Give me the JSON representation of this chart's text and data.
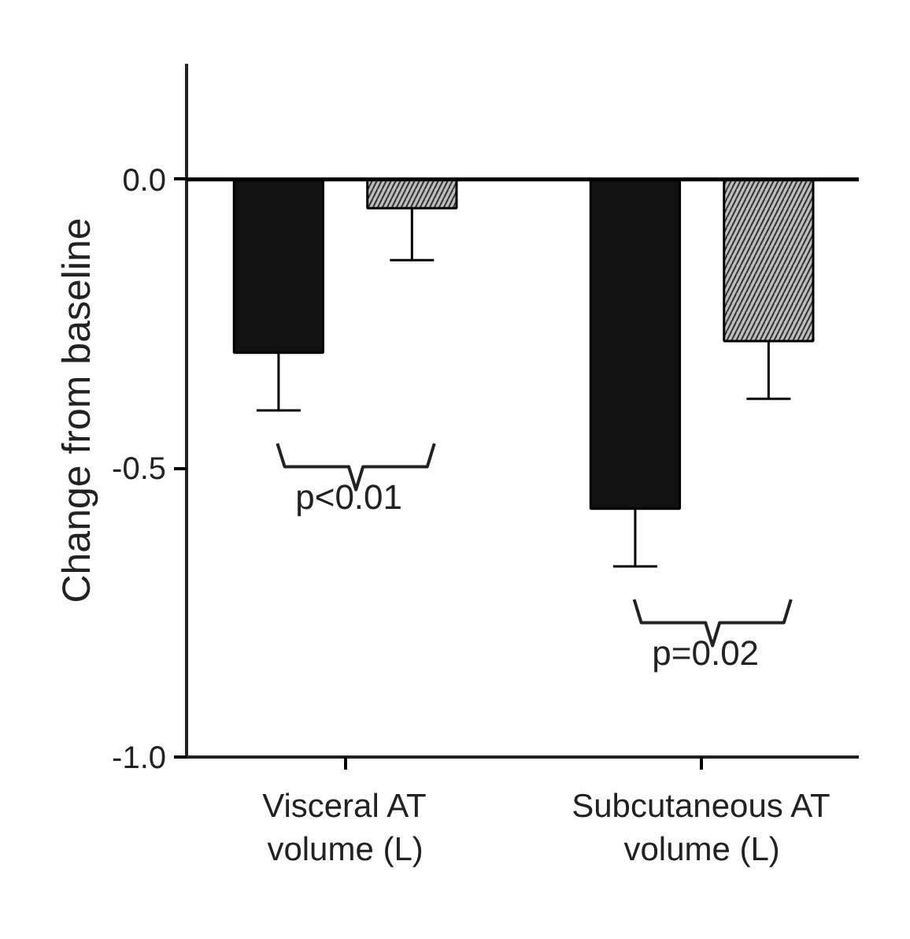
{
  "chart_data": {
    "type": "bar",
    "ylabel": "Change from baseline",
    "categories": [
      "Visceral AT\nvolume (L)",
      "Subcutaneous AT\nvolume (L)"
    ],
    "series": [
      {
        "color": "#111111",
        "values": [
          -0.3,
          -0.57
        ],
        "errors": [
          [
            -0.4,
            -0.3
          ],
          [
            -0.67,
            -0.57
          ]
        ]
      },
      {
        "color": "#bdbdbd",
        "values": [
          -0.05,
          -0.28
        ],
        "errors": [
          [
            -0.14,
            -0.05
          ],
          [
            -0.38,
            -0.28
          ]
        ]
      }
    ],
    "ylim": [
      -1.0,
      0.2
    ],
    "yticks": [
      {
        "value": 0,
        "label": "0.0"
      },
      {
        "value": -0.5,
        "label": "-0.5"
      },
      {
        "value": -1.0,
        "label": "-1.0"
      }
    ],
    "ref_lines": [
      {
        "axis": "y",
        "value": 0,
        "color": "#000000"
      }
    ],
    "annotations": [
      "p<0.01",
      "p=0.02"
    ],
    "grid": false
  }
}
